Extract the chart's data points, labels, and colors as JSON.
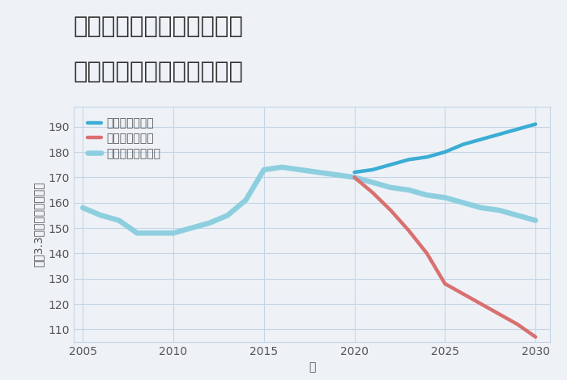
{
  "title_line1": "奈良県奈良市学園朝日町の",
  "title_line2": "中古マンションの価格推移",
  "xlabel": "年",
  "ylabel": "坪（3.3㎡）単価（万円）",
  "background_color": "#eef2f7",
  "plot_bg_color": "#eef2f7",
  "grid_color": "#c5d5e5",
  "normal_x": [
    2005,
    2006,
    2007,
    2008,
    2009,
    2010,
    2011,
    2012,
    2013,
    2014,
    2015,
    2016,
    2017,
    2018,
    2019,
    2020,
    2021,
    2022,
    2023,
    2024,
    2025,
    2026,
    2027,
    2028,
    2029,
    2030
  ],
  "normal_y": [
    158,
    155,
    153,
    148,
    148,
    148,
    150,
    152,
    155,
    161,
    173,
    174,
    173,
    172,
    171,
    170,
    168,
    166,
    165,
    163,
    162,
    160,
    158,
    157,
    155,
    153
  ],
  "good_x": [
    2020,
    2021,
    2022,
    2023,
    2024,
    2025,
    2026,
    2027,
    2028,
    2029,
    2030
  ],
  "good_y": [
    172,
    173,
    175,
    177,
    178,
    180,
    183,
    185,
    187,
    189,
    191
  ],
  "bad_x": [
    2020,
    2021,
    2022,
    2023,
    2024,
    2025,
    2026,
    2027,
    2028,
    2029,
    2030
  ],
  "bad_y": [
    170,
    164,
    157,
    149,
    140,
    128,
    124,
    120,
    116,
    112,
    107
  ],
  "normal_color": "#8ECFDF",
  "good_color": "#3BADD4",
  "bad_color": "#D97070",
  "legend_good": "グッドシナリオ",
  "legend_bad": "バッドシナリオ",
  "legend_normal": "ノーマルシナリオ",
  "ylim": [
    105,
    198
  ],
  "yticks": [
    110,
    120,
    130,
    140,
    150,
    160,
    170,
    180,
    190
  ],
  "xlim": [
    2004.5,
    2030.8
  ],
  "xticks": [
    2005,
    2010,
    2015,
    2020,
    2025,
    2030
  ],
  "line_width": 3.2,
  "title_fontsize": 21,
  "label_fontsize": 10,
  "tick_fontsize": 10,
  "legend_fontsize": 10
}
